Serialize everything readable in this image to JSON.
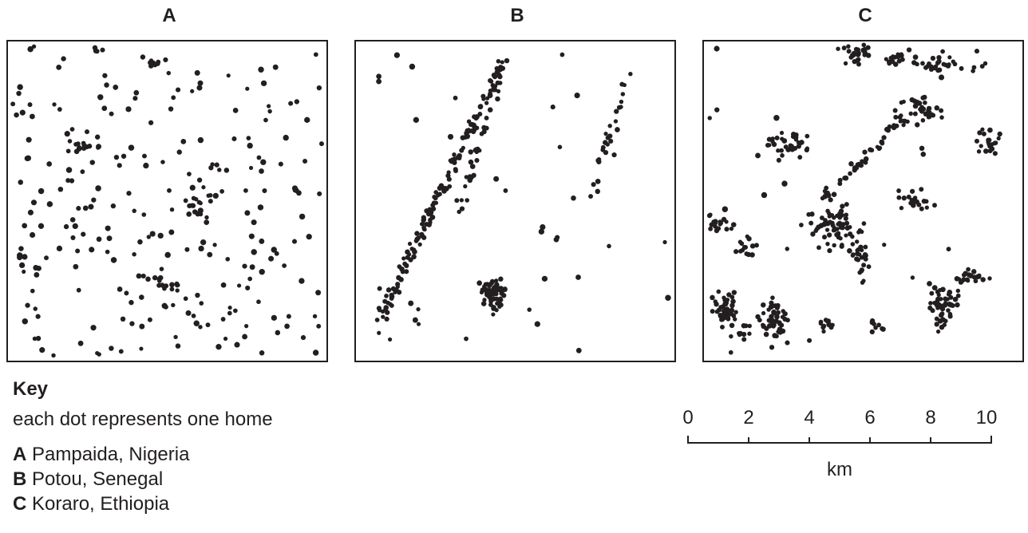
{
  "panels": [
    {
      "letter": "A",
      "seed": 11,
      "pattern": "dispersed"
    },
    {
      "letter": "B",
      "seed": 23,
      "pattern": "linear"
    },
    {
      "letter": "C",
      "seed": 37,
      "pattern": "clustered"
    }
  ],
  "key": {
    "title": "Key",
    "description": "each dot represents one home",
    "items": [
      {
        "letter": "A",
        "place": "Pampaida, Nigeria"
      },
      {
        "letter": "B",
        "place": "Potou, Senegal"
      },
      {
        "letter": "C",
        "place": "Koraro, Ethiopia"
      }
    ]
  },
  "scale_bar": {
    "ticks": [
      "0",
      "2",
      "4",
      "6",
      "8",
      "10"
    ],
    "unit": "km"
  },
  "colors": {
    "ink": "#231f20",
    "background": "#ffffff"
  }
}
